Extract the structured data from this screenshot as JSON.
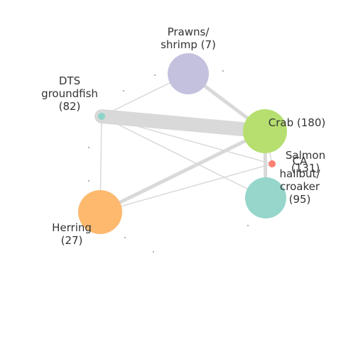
{
  "nodes": [
    {
      "id": "prawns",
      "lines": [
        "Prawns/",
        "shrimp (7)"
      ],
      "color": "#C3C1DE"
    },
    {
      "id": "dts",
      "lines": [
        "DTS",
        "groundfish",
        "(82)"
      ],
      "color": "#8DD3C7"
    },
    {
      "id": "crab",
      "lines": [
        "Crab (180)"
      ],
      "color": "#B6DF6F"
    },
    {
      "id": "salmon",
      "lines": [
        "Salmon",
        "(131)"
      ],
      "color": "#FA8072"
    },
    {
      "id": "ca-halibut",
      "lines": [
        "CA",
        "halibut/",
        "croaker",
        "(95)"
      ],
      "color": "#96D6CB"
    },
    {
      "id": "herring",
      "lines": [
        "Herring",
        "(27)"
      ],
      "color": "#FDB96E"
    }
  ],
  "edges": [
    {
      "from": "dts",
      "to": "crab",
      "weight": "heavy"
    },
    {
      "from": "prawns",
      "to": "crab",
      "weight": "medium"
    },
    {
      "from": "prawns",
      "to": "dts",
      "weight": "light"
    },
    {
      "from": "herring",
      "to": "crab",
      "weight": "medium"
    },
    {
      "from": "dts",
      "to": "herring",
      "weight": "light"
    },
    {
      "from": "dts",
      "to": "ca-halibut",
      "weight": "light"
    },
    {
      "from": "dts",
      "to": "salmon",
      "weight": "light"
    },
    {
      "from": "crab",
      "to": "ca-halibut",
      "weight": "medium"
    },
    {
      "from": "herring",
      "to": "salmon",
      "weight": "light"
    },
    {
      "from": "crab",
      "to": "salmon",
      "weight": "light"
    }
  ]
}
